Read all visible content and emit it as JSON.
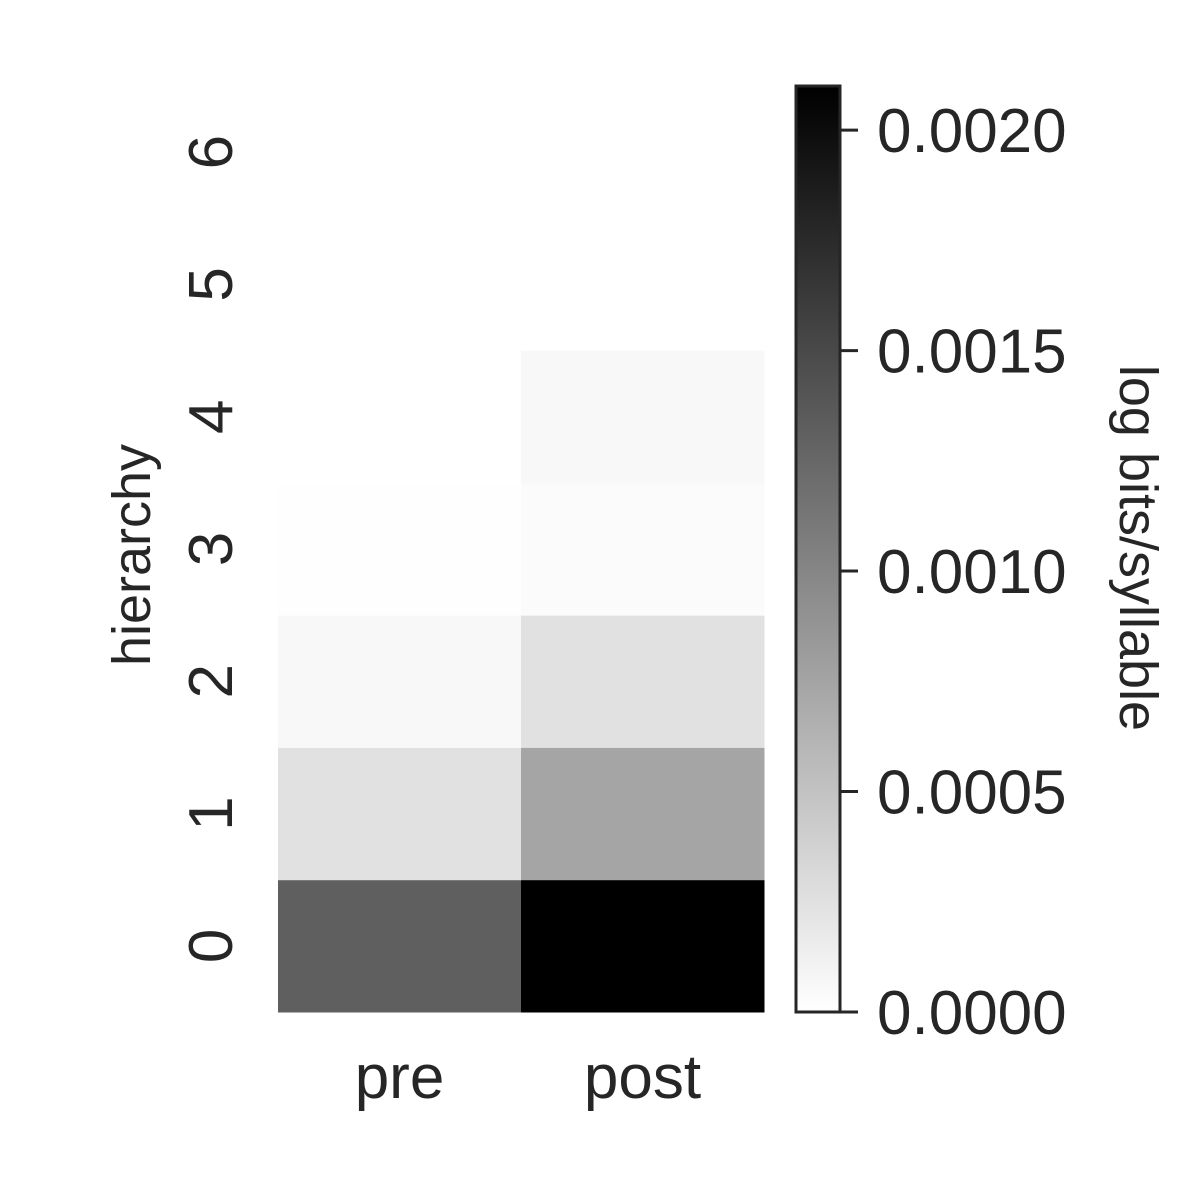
{
  "chart_data": {
    "type": "heatmap",
    "title": "",
    "xlabel": "",
    "ylabel": "hierarchy",
    "x_categories": [
      "pre",
      "post"
    ],
    "y_categories": [
      "0",
      "1",
      "2",
      "3",
      "4",
      "5",
      "6"
    ],
    "values": [
      [
        0.00132,
        0.0021
      ],
      [
        0.00025,
        0.00074
      ],
      [
        6e-05,
        0.00025
      ],
      [
        1e-05,
        3e-05
      ],
      [
        null,
        6e-05
      ],
      [
        null,
        null
      ],
      [
        null,
        null
      ]
    ],
    "colormap": {
      "name": "Greys",
      "low_color": "#ffffff",
      "high_color": "#000000"
    },
    "colorbar": {
      "label": "log bits/syllable",
      "range": [
        0,
        0.0021
      ],
      "ticks": [
        0.0,
        0.0005,
        0.001,
        0.0015,
        0.002
      ],
      "tick_labels": [
        "0.0000",
        "0.0005",
        "0.0010",
        "0.0015",
        "0.0020"
      ]
    },
    "grid": false,
    "text_color": "#262626"
  }
}
